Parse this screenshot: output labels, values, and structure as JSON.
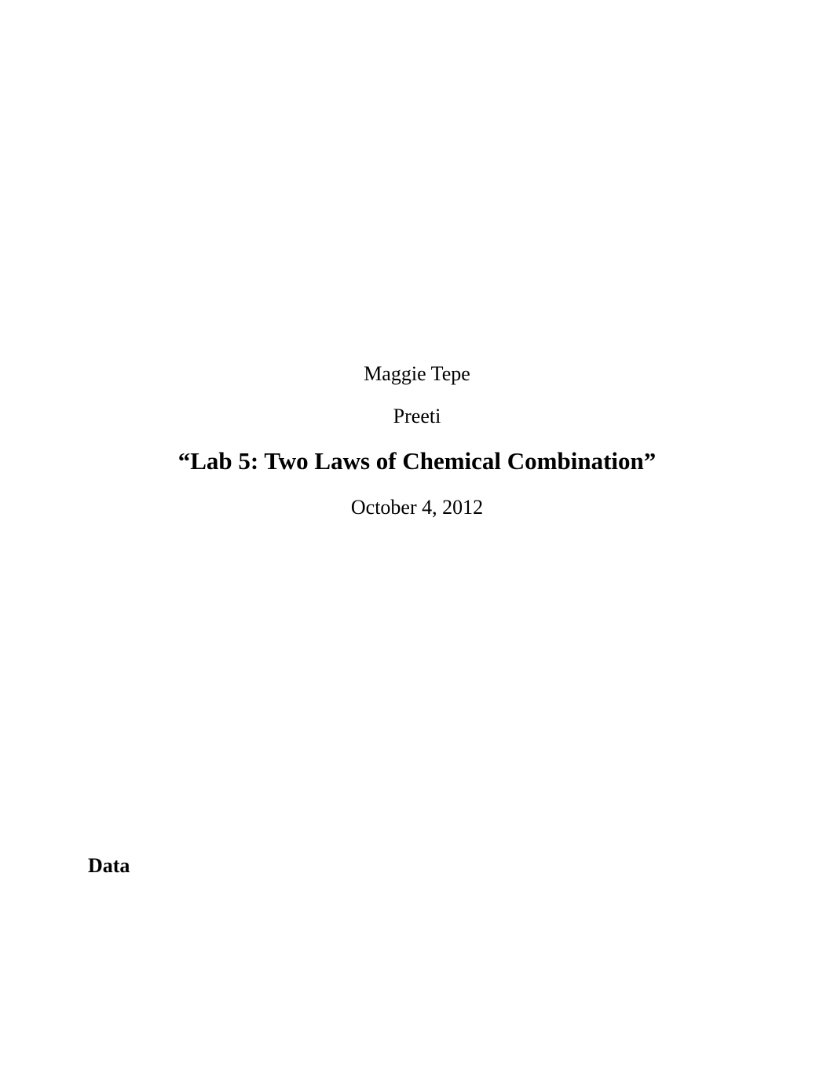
{
  "header": {
    "author_name": "Maggie Tepe",
    "second_name": "Preeti",
    "title": "“Lab 5: Two Laws of Chemical Combination”",
    "date": "October 4, 2012"
  },
  "sections": {
    "data_heading": "Data"
  },
  "styling": {
    "background_color": "#ffffff",
    "text_color": "#000000",
    "font_family": "Times New Roman",
    "body_fontsize": 26,
    "title_fontsize": 31,
    "title_fontweight": "bold",
    "section_heading_fontweight": "bold"
  }
}
